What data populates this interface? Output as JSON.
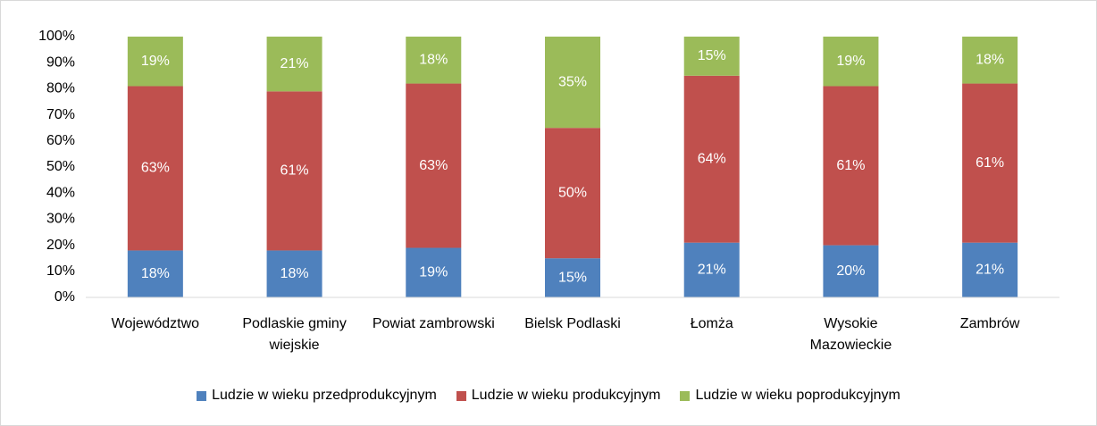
{
  "chart_data": {
    "type": "stacked_bar",
    "categories": [
      "Województwo",
      "Podlaskie gminy wiejskie",
      "Powiat zambrowski",
      "Bielsk Podlaski",
      "Łomża",
      "Wysokie Mazowieckie",
      "Zambrów"
    ],
    "series": [
      {
        "name": "Ludzie w wieku przedprodukcyjnym",
        "color": "#4f81bd",
        "values": [
          18,
          18,
          19,
          15,
          21,
          20,
          21
        ],
        "value_labels": [
          "18%",
          "18%",
          "19%",
          "15%",
          "21%",
          "20%",
          "21%"
        ]
      },
      {
        "name": "Ludzie w wieku produkcyjnym",
        "color": "#c0504d",
        "values": [
          63,
          61,
          63,
          50,
          64,
          61,
          61
        ],
        "value_labels": [
          "63%",
          "61%",
          "63%",
          "50%",
          "64%",
          "61%",
          "61%"
        ]
      },
      {
        "name": "Ludzie w wieku poprodukcyjnym",
        "color": "#9bbb59",
        "values": [
          19,
          21,
          18,
          35,
          15,
          19,
          18
        ],
        "value_labels": [
          "19%",
          "21%",
          "18%",
          "35%",
          "15%",
          "19%",
          "18%"
        ]
      }
    ],
    "ylim": [
      0,
      100
    ],
    "yticks": [
      {
        "value": 0,
        "label": "0%"
      },
      {
        "value": 10,
        "label": "10%"
      },
      {
        "value": 20,
        "label": "20%"
      },
      {
        "value": 30,
        "label": "30%"
      },
      {
        "value": 40,
        "label": "40%"
      },
      {
        "value": 50,
        "label": "50%"
      },
      {
        "value": 60,
        "label": "60%"
      },
      {
        "value": 70,
        "label": "70%"
      },
      {
        "value": 80,
        "label": "80%"
      },
      {
        "value": 90,
        "label": "90%"
      },
      {
        "value": 100,
        "label": "100%"
      }
    ],
    "grid": false,
    "legend": "bottom"
  }
}
